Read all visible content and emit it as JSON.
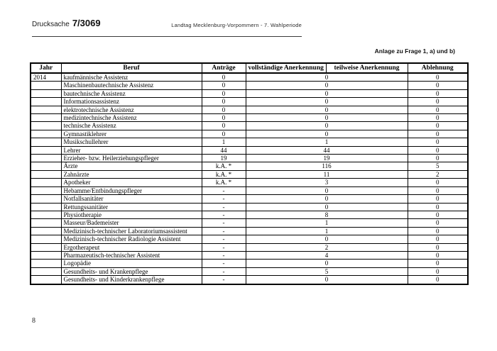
{
  "header": {
    "doc_label": "Drucksache",
    "doc_number": "7/3069",
    "right_text": "Landtag Mecklenburg-Vorpommern - 7. Wahlperiode"
  },
  "annotation": "Anlage zu Frage 1, a) und b)",
  "table": {
    "columns": [
      "Jahr",
      "Beruf",
      "Anträge",
      "vollständige Anerkennung",
      "teilweise Anerkennung",
      "Ablehnung"
    ],
    "rows": [
      {
        "jahr": "2014",
        "beruf": "kaufmännische Assistenz",
        "antraege": "0",
        "anerkennung": "0",
        "ablehnung": "0"
      },
      {
        "jahr": "",
        "beruf": "Maschinenbautechnische Assistenz",
        "antraege": "0",
        "anerkennung": "0",
        "ablehnung": "0"
      },
      {
        "jahr": "",
        "beruf": "bautechnische Assistenz",
        "antraege": "0",
        "anerkennung": "0",
        "ablehnung": "0"
      },
      {
        "jahr": "",
        "beruf": "Informationsassistenz",
        "antraege": "0",
        "anerkennung": "0",
        "ablehnung": "0"
      },
      {
        "jahr": "",
        "beruf": "elektrotechnische Assistenz",
        "antraege": "0",
        "anerkennung": "0",
        "ablehnung": "0"
      },
      {
        "jahr": "",
        "beruf": "medizintechnische Assistenz",
        "antraege": "0",
        "anerkennung": "0",
        "ablehnung": "0"
      },
      {
        "jahr": "",
        "beruf": "technische Assistenz",
        "antraege": "0",
        "anerkennung": "0",
        "ablehnung": "0"
      },
      {
        "jahr": "",
        "beruf": "Gymnastiklehrer",
        "antraege": "0",
        "anerkennung": "0",
        "ablehnung": "0"
      },
      {
        "jahr": "",
        "beruf": "Musikschullehrer",
        "antraege": "1",
        "anerkennung": "1",
        "ablehnung": "0"
      },
      {
        "jahr": "",
        "beruf": "Lehrer",
        "antraege": "44",
        "anerkennung": "44",
        "ablehnung": "0"
      },
      {
        "jahr": "",
        "beruf": "Erzieher- bzw. Heilerziehungspfleger",
        "antraege": "19",
        "anerkennung": "19",
        "ablehnung": "0"
      },
      {
        "jahr": "",
        "beruf": "Ärzte",
        "antraege": "k.A. *",
        "anerkennung": "116",
        "ablehnung": "5"
      },
      {
        "jahr": "",
        "beruf": "Zahnärzte",
        "antraege": "k.A. *",
        "anerkennung": "11",
        "ablehnung": "2"
      },
      {
        "jahr": "",
        "beruf": "Apotheker",
        "antraege": "k.A. *",
        "anerkennung": "3",
        "ablehnung": "0"
      },
      {
        "jahr": "",
        "beruf": "Hebamme/Entbindungspfleger",
        "antraege": "-",
        "anerkennung": "0",
        "ablehnung": "0"
      },
      {
        "jahr": "",
        "beruf": "Notfallsanitäter",
        "antraege": "-",
        "anerkennung": "0",
        "ablehnung": "0"
      },
      {
        "jahr": "",
        "beruf": "Rettungssanitäter",
        "antraege": "-",
        "anerkennung": "0",
        "ablehnung": "0"
      },
      {
        "jahr": "",
        "beruf": "Physiotherapie",
        "antraege": "-",
        "anerkennung": "8",
        "ablehnung": "0"
      },
      {
        "jahr": "",
        "beruf": "Masseur/Bademeister",
        "antraege": "-",
        "anerkennung": "1",
        "ablehnung": "0"
      },
      {
        "jahr": "",
        "beruf": "Medizinisch-technischer Laboratoriumsassistent",
        "antraege": "-",
        "anerkennung": "1",
        "ablehnung": "0"
      },
      {
        "jahr": "",
        "beruf": "Medizinisch-technischer Radiologie Assistent",
        "antraege": "-",
        "anerkennung": "0",
        "ablehnung": "0"
      },
      {
        "jahr": "",
        "beruf": "Ergotherapeut",
        "antraege": "-",
        "anerkennung": "2",
        "ablehnung": "0"
      },
      {
        "jahr": "",
        "beruf": "Pharmazeutisch-technischer Assistent",
        "antraege": "-",
        "anerkennung": "4",
        "ablehnung": "0"
      },
      {
        "jahr": "",
        "beruf": "Logopädie",
        "antraege": "-",
        "anerkennung": "0",
        "ablehnung": "0"
      },
      {
        "jahr": "",
        "beruf": "Gesundheits- und Krankenpflege",
        "antraege": "-",
        "anerkennung": "5",
        "ablehnung": "0"
      },
      {
        "jahr": "",
        "beruf": "Gesundheits- und Kinderkrankenpflege",
        "antraege": "-",
        "anerkennung": "0",
        "ablehnung": "0"
      }
    ]
  },
  "page": {
    "number": "8"
  }
}
